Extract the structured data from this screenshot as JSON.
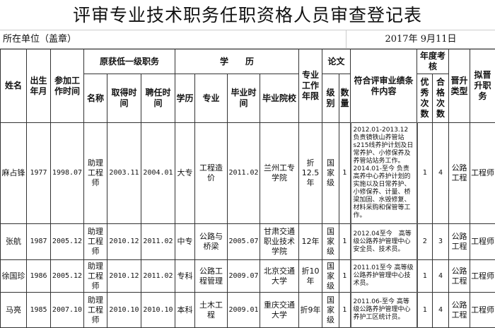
{
  "title": "评审专业技术职务任职资格人员审查登记表",
  "unit_label": "所在单位（盖章）",
  "date": "2017年  9月11日",
  "headers": {
    "name": "姓名",
    "birth": "出生年月",
    "work_start": "参加工作时间",
    "prev_post": "原获低一级职务",
    "post_name": "名称",
    "obtain_time": "取得时间",
    "appoint_time": "聘任时间",
    "education": "学　　历",
    "degree": "学历",
    "major": "专业",
    "grad_time": "毕业时间",
    "school": "毕业院校",
    "years": "专业工作年限",
    "thesis": "论文",
    "level": "级别",
    "count": "数量",
    "content": "符合评审业绩条件内容",
    "annual": "年度考核",
    "excellent": "优秀次数",
    "qualified": "合格次数",
    "promo_type": "晋升类型",
    "target_post": "拟晋升职务"
  },
  "rows": [
    {
      "name": "麻占锋",
      "birth": "1977",
      "work_start": "1998.07",
      "post_name": "助理工程师",
      "obtain_time": "2003.11",
      "appoint_time": "2004.01",
      "degree": "大专",
      "major": "工程造价",
      "grad_time": "2011.02",
      "school": "兰州工专学院",
      "years": "折12.5年",
      "level": "国家级",
      "count": "1",
      "content": "2012.01-2013.12 负责镜铁山养管站s215线养护计划及日常养护、小修保养及养管站站务工作。 2014.01-至今 负责高养中心养护计划的实施以及日常养护、小修保养、计量、桥梁加固、水毁修复、材料采购和保管等工作。",
      "excellent": "1",
      "qualified": "4",
      "promo_type": "公路工程",
      "target_post": "工程师"
    },
    {
      "name": "张航",
      "birth": "1987",
      "work_start": "2005.12",
      "post_name": "助理工程师",
      "obtain_time": "2010.12",
      "appoint_time": "2011.02",
      "degree": "中专",
      "major": "公路与桥梁",
      "grad_time": "2005.07",
      "school": "甘肃交通职业技术学院",
      "years": "12年",
      "level": "国家级",
      "count": "1",
      "content": "2012.04至今　高等级公路养护管理中心安全员、技术员。",
      "excellent": "2",
      "qualified": "3",
      "promo_type": "公路工程",
      "target_post": "工程师"
    },
    {
      "name": "徐国珍",
      "birth": "1986",
      "work_start": "2005.12",
      "post_name": "助理工程师",
      "obtain_time": "2010.12",
      "appoint_time": "2011.02",
      "degree": "专科",
      "major": "公路工程管理",
      "grad_time": "2009.07",
      "school": "北京交通大学",
      "years": "折10年",
      "level": "国家级",
      "count": "1",
      "content": "2011.01至今 高等级公路养护管理中心技术员。",
      "excellent": "1",
      "qualified": "4",
      "promo_type": "公路工程",
      "target_post": "工程师"
    },
    {
      "name": "马亮",
      "birth": "1985",
      "work_start": "2007.10",
      "post_name": "助理工程师",
      "obtain_time": "2010.10",
      "appoint_time": "2010.10",
      "degree": "本科",
      "major": "土木工程",
      "grad_time": "2009.01",
      "school": "重庆交通大学",
      "years": "折9年",
      "level": "国家级",
      "count": "1",
      "content": "2011.06-至今 高等级公路养护管理中心养护工区统计员。",
      "excellent": "1",
      "qualified": "4",
      "promo_type": "公路工程",
      "target_post": "工程师"
    }
  ]
}
